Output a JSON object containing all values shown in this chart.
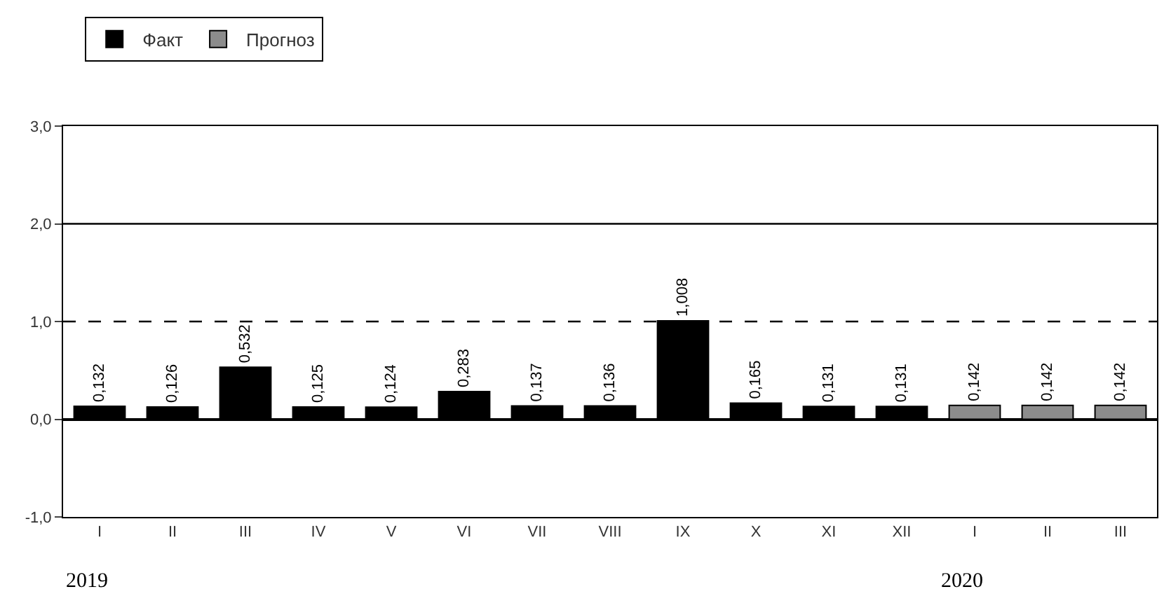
{
  "chart_data": {
    "type": "bar",
    "categories": [
      "I",
      "II",
      "III",
      "IV",
      "V",
      "VI",
      "VII",
      "VIII",
      "IX",
      "X",
      "XI",
      "XII",
      "I",
      "II",
      "III"
    ],
    "series": [
      {
        "name": "Факт",
        "color": "#000000",
        "values": [
          0.132,
          0.126,
          0.532,
          0.125,
          0.124,
          0.283,
          0.137,
          0.136,
          1.008,
          0.165,
          0.131,
          0.131,
          null,
          null,
          null
        ],
        "value_labels": [
          "0,132",
          "0,126",
          "0,532",
          "0,125",
          "0,124",
          "0,283",
          "0,137",
          "0,136",
          "1,008",
          "0,165",
          "0,131",
          "0,131",
          null,
          null,
          null
        ]
      },
      {
        "name": "Прогноз",
        "color": "#8c8c8c",
        "values": [
          null,
          null,
          null,
          null,
          null,
          null,
          null,
          null,
          null,
          null,
          null,
          null,
          0.142,
          0.142,
          0.142
        ],
        "value_labels": [
          null,
          null,
          null,
          null,
          null,
          null,
          null,
          null,
          null,
          null,
          null,
          null,
          "0,142",
          "0,142",
          "0,142"
        ]
      }
    ],
    "ylim": [
      -1,
      3
    ],
    "yticks": [
      {
        "value": -1,
        "label": "-1,0"
      },
      {
        "value": 0,
        "label": "0,0"
      },
      {
        "value": 1,
        "label": "1,0"
      },
      {
        "value": 2,
        "label": "2,0"
      },
      {
        "value": 3,
        "label": "3,0"
      }
    ],
    "ref_lines": [
      {
        "axis": "y",
        "value": 2,
        "color": "#000000",
        "line_style": "solid"
      },
      {
        "axis": "y",
        "value": 1,
        "color": "#000000",
        "line_style": "dashed"
      }
    ],
    "annotations": [
      "2019",
      "2020"
    ],
    "legend": "top left",
    "grid": false
  }
}
